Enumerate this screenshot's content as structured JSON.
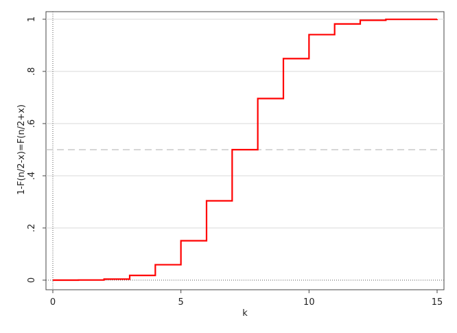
{
  "chart_data": {
    "type": "line",
    "step": true,
    "title": "",
    "xlabel": "k",
    "ylabel": "1-F(n/2-x)=F(n/2+x)",
    "xlim": [
      0,
      15
    ],
    "ylim": [
      0,
      1
    ],
    "x_ticks": [
      0,
      5,
      10,
      15
    ],
    "x_tick_labels": [
      "0",
      "5",
      "10",
      "15"
    ],
    "y_ticks": [
      0,
      0.2,
      0.4,
      0.6,
      0.8,
      1
    ],
    "y_tick_labels": [
      "0",
      ".2",
      ".4",
      ".6",
      ".8",
      "1"
    ],
    "grid": true,
    "reference_line": {
      "y": 0.5,
      "style": "dashed"
    },
    "series": [
      {
        "color": "#ff0000",
        "x": [
          0,
          1,
          2,
          3,
          4,
          5,
          6,
          7,
          8,
          9,
          10,
          11,
          12,
          13,
          15
        ],
        "y": [
          0.0,
          0.0005,
          0.004,
          0.018,
          0.059,
          0.151,
          0.304,
          0.5,
          0.696,
          0.849,
          0.941,
          0.982,
          0.996,
          0.9995,
          1.0
        ]
      }
    ]
  }
}
